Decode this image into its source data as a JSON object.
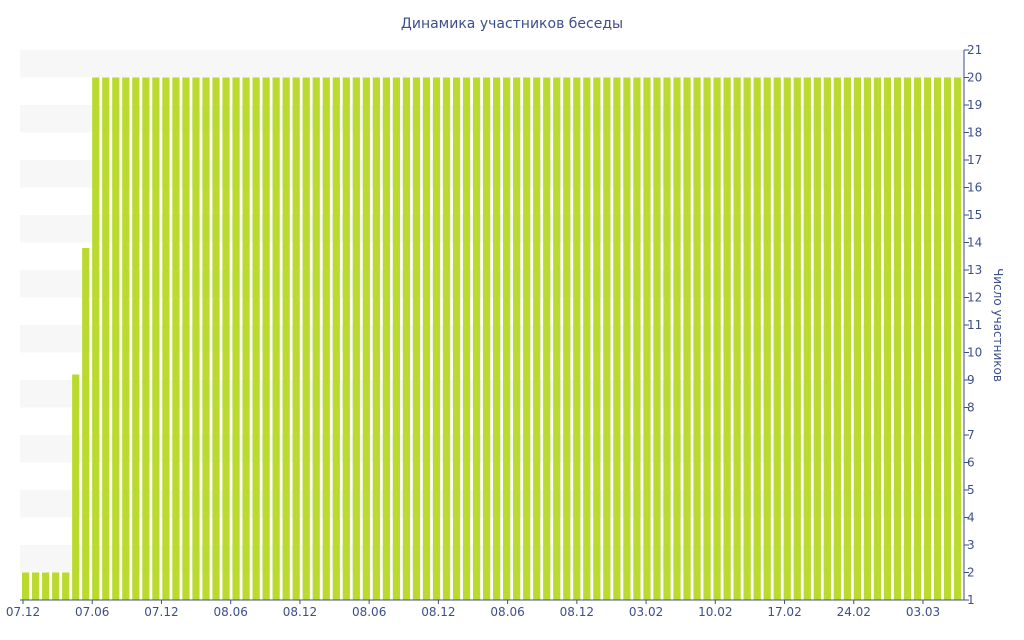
{
  "chart_data": {
    "type": "bar",
    "title": "Динамика участников беседы",
    "ylabel": "Число участников",
    "xlabel": "",
    "ylim": [
      1,
      21
    ],
    "yticks": [
      1,
      2,
      3,
      4,
      5,
      6,
      7,
      8,
      9,
      10,
      11,
      12,
      13,
      14,
      15,
      16,
      17,
      18,
      19,
      20,
      21
    ],
    "y_axis_side": "right",
    "grid": "alternating horizontal bands",
    "xtick_labels": [
      "07.12",
      "07.06",
      "07.12",
      "08.06",
      "08.12",
      "08.06",
      "08.12",
      "08.06",
      "08.12",
      "03.02",
      "10.02",
      "17.02",
      "24.02",
      "03.03"
    ],
    "bar_color": "#bada2f",
    "band_color": "#f7f7f7",
    "text_color": "#3d4f8a",
    "values": [
      2,
      2,
      2,
      2,
      2,
      9.2,
      13.8,
      20,
      20,
      20,
      20,
      20,
      20,
      20,
      20,
      20,
      20,
      20,
      20,
      20,
      20,
      20,
      20,
      20,
      20,
      20,
      20,
      20,
      20,
      20,
      20,
      20,
      20,
      20,
      20,
      20,
      20,
      20,
      20,
      20,
      20,
      20,
      20,
      20,
      20,
      20,
      20,
      20,
      20,
      20,
      20,
      20,
      20,
      20,
      20,
      20,
      20,
      20,
      20,
      20,
      20,
      20,
      20,
      20,
      20,
      20,
      20,
      20,
      20,
      20,
      20,
      20,
      20,
      20,
      20,
      20,
      20,
      20,
      20,
      20,
      20,
      20,
      20,
      20,
      20,
      20,
      20,
      20,
      20,
      20,
      20,
      20,
      20,
      20
    ]
  }
}
